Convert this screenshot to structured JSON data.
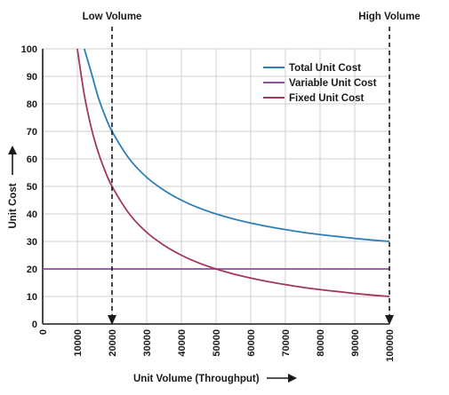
{
  "chart_data": {
    "type": "line",
    "xlabel": "Unit Volume (Throughput)",
    "ylabel": "Unit Cost",
    "xlim": [
      0,
      100000
    ],
    "ylim": [
      0,
      100
    ],
    "x_ticks": [
      "0",
      "10000",
      "20000",
      "30000",
      "40000",
      "50000",
      "60000",
      "70000",
      "80000",
      "90000",
      "100000"
    ],
    "y_ticks": [
      "0",
      "10",
      "20",
      "30",
      "40",
      "50",
      "60",
      "70",
      "80",
      "90",
      "100"
    ],
    "grid": true,
    "legend_position": "top-right",
    "series": [
      {
        "name": "Total Unit Cost",
        "color": "#2a7fb8",
        "x": [
          12000,
          14000,
          16000,
          18000,
          20000,
          25000,
          30000,
          35000,
          40000,
          45000,
          50000,
          55000,
          60000,
          65000,
          70000,
          75000,
          80000,
          85000,
          90000,
          95000,
          100000
        ],
        "y": [
          100,
          91.4,
          82.5,
          75.6,
          70,
          60,
          53.3,
          48.6,
          45,
          42.2,
          40,
          38.2,
          36.7,
          35.4,
          34.3,
          33.3,
          32.5,
          31.8,
          31.1,
          30.5,
          30
        ]
      },
      {
        "name": "Variable Unit Cost",
        "color": "#8a4f9e",
        "x": [
          0,
          100000
        ],
        "y": [
          20,
          20
        ]
      },
      {
        "name": "Fixed Unit Cost",
        "color": "#a3365e",
        "x": [
          10000,
          12000,
          14000,
          16000,
          18000,
          20000,
          25000,
          30000,
          35000,
          40000,
          45000,
          50000,
          55000,
          60000,
          65000,
          70000,
          75000,
          80000,
          85000,
          90000,
          95000,
          100000
        ],
        "y": [
          100,
          83.3,
          71.4,
          62.5,
          55.6,
          50,
          40,
          33.3,
          28.6,
          25,
          22.2,
          20,
          18.2,
          16.7,
          15.4,
          14.3,
          13.3,
          12.5,
          11.8,
          11.1,
          10.5,
          10
        ]
      }
    ],
    "annotations": [
      {
        "text": "Low Volume",
        "x": 20000
      },
      {
        "text": "High Volume",
        "x": 100000
      }
    ]
  }
}
